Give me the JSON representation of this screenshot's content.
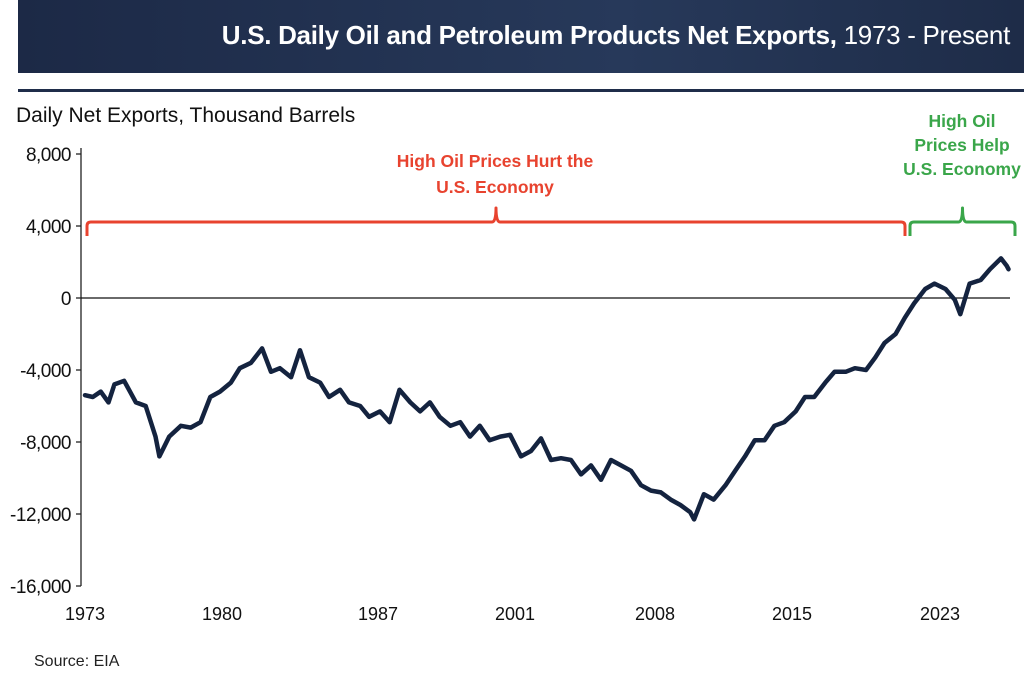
{
  "header": {
    "title_bold": "U.S. Daily Oil and Petroleum Products Net Exports,",
    "title_rest": " 1973 - Present"
  },
  "source": "Source: EIA",
  "colors": {
    "header": "#1f2d4a",
    "line": "#14233f",
    "red": "#e8432f",
    "green": "#3aa64a"
  },
  "chart_data": {
    "type": "line",
    "title": "U.S. Daily Oil and Petroleum Products Net Exports, 1973 - Present",
    "ylabel": "Daily Net Exports, Thousand Barrels",
    "xlabel": "",
    "ylim": [
      -16000,
      8000
    ],
    "yticks": [
      8000,
      4000,
      0,
      -4000,
      -8000,
      -12000,
      -16000
    ],
    "ytick_labels": [
      "8,000",
      "4,000",
      "0",
      "-4,000",
      "-8,000",
      "-12,000",
      "-16,000"
    ],
    "xticks": [
      1973,
      1980,
      1987,
      2001,
      2008,
      2015,
      2023
    ],
    "xtick_labels": [
      "1973",
      "1980",
      "1987",
      "2001",
      "2008",
      "2015",
      "2023"
    ],
    "grid": false,
    "reference_line": 0,
    "annotations": [
      {
        "lines": [
          "High Oil Prices Hurt the",
          "U.S. Economy"
        ],
        "color": "red",
        "span": [
          1973,
          2021
        ]
      },
      {
        "lines": [
          "High Oil",
          "Prices Help",
          "U.S. Economy"
        ],
        "color": "green",
        "span": [
          2021,
          2026.7
        ]
      }
    ],
    "series": [
      {
        "x": [
          1973.0,
          1973.4,
          1973.8,
          1974.2,
          1974.5,
          1975.0,
          1975.6,
          1976.1,
          1976.6,
          1976.8,
          1977.3,
          1977.9,
          1978.4,
          1978.9,
          1979.4,
          1979.9,
          1980.4,
          1980.8,
          1981.3,
          1981.8,
          1982.2,
          1982.6,
          1983.1,
          1983.5,
          1983.9,
          1984.4,
          1984.8,
          1985.3,
          1985.7,
          1986.2,
          1986.6,
          1987.2,
          1988.2,
          1989.2,
          1990.3,
          1991.3,
          1992.3,
          1993.3,
          1994.4,
          1995.4,
          1996.4,
          1997.4,
          1998.4,
          1999.5,
          2000.5,
          2001.3,
          2001.8,
          2002.3,
          2002.8,
          2003.3,
          2003.8,
          2004.3,
          2004.8,
          2005.3,
          2005.8,
          2006.3,
          2006.8,
          2007.3,
          2007.8,
          2008.3,
          2008.8,
          2009.3,
          2009.8,
          2010.0,
          2010.5,
          2011.0,
          2011.6,
          2012.1,
          2012.6,
          2013.1,
          2013.6,
          2014.1,
          2014.6,
          2015.2,
          2015.7,
          2016.2,
          2016.8,
          2017.3,
          2017.9,
          2018.4,
          2019.0,
          2019.5,
          2020.0,
          2020.6,
          2021.1,
          2021.6,
          2022.2,
          2022.7,
          2023.3,
          2023.8,
          2024.1,
          2024.6,
          2025.2,
          2025.7,
          2026.3,
          2026.6,
          2026.7
        ],
        "y": [
          -5400,
          -5500,
          -5200,
          -5800,
          -4800,
          -4600,
          -5800,
          -6000,
          -7700,
          -8800,
          -7700,
          -7100,
          -7200,
          -6900,
          -5500,
          -5200,
          -4700,
          -3900,
          -3600,
          -2800,
          -4100,
          -3900,
          -4400,
          -2900,
          -4400,
          -4700,
          -5500,
          -5100,
          -5800,
          -6000,
          -6600,
          -6300,
          -6900,
          -5100,
          -5800,
          -6300,
          -5800,
          -6600,
          -7100,
          -6900,
          -7700,
          -7100,
          -7900,
          -7700,
          -7600,
          -8800,
          -8500,
          -7800,
          -9000,
          -8900,
          -9000,
          -9800,
          -9300,
          -10100,
          -9000,
          -9300,
          -9600,
          -10400,
          -10700,
          -10800,
          -11200,
          -11500,
          -11900,
          -12300,
          -10900,
          -11200,
          -10400,
          -9600,
          -8800,
          -7900,
          -7900,
          -7100,
          -6900,
          -6300,
          -5500,
          -5500,
          -4700,
          -4100,
          -4100,
          -3900,
          -4000,
          -3300,
          -2500,
          -2000,
          -1100,
          -300,
          500,
          800,
          500,
          -100,
          -900,
          800,
          1000,
          1600,
          2200,
          1800,
          1600
        ]
      }
    ]
  }
}
